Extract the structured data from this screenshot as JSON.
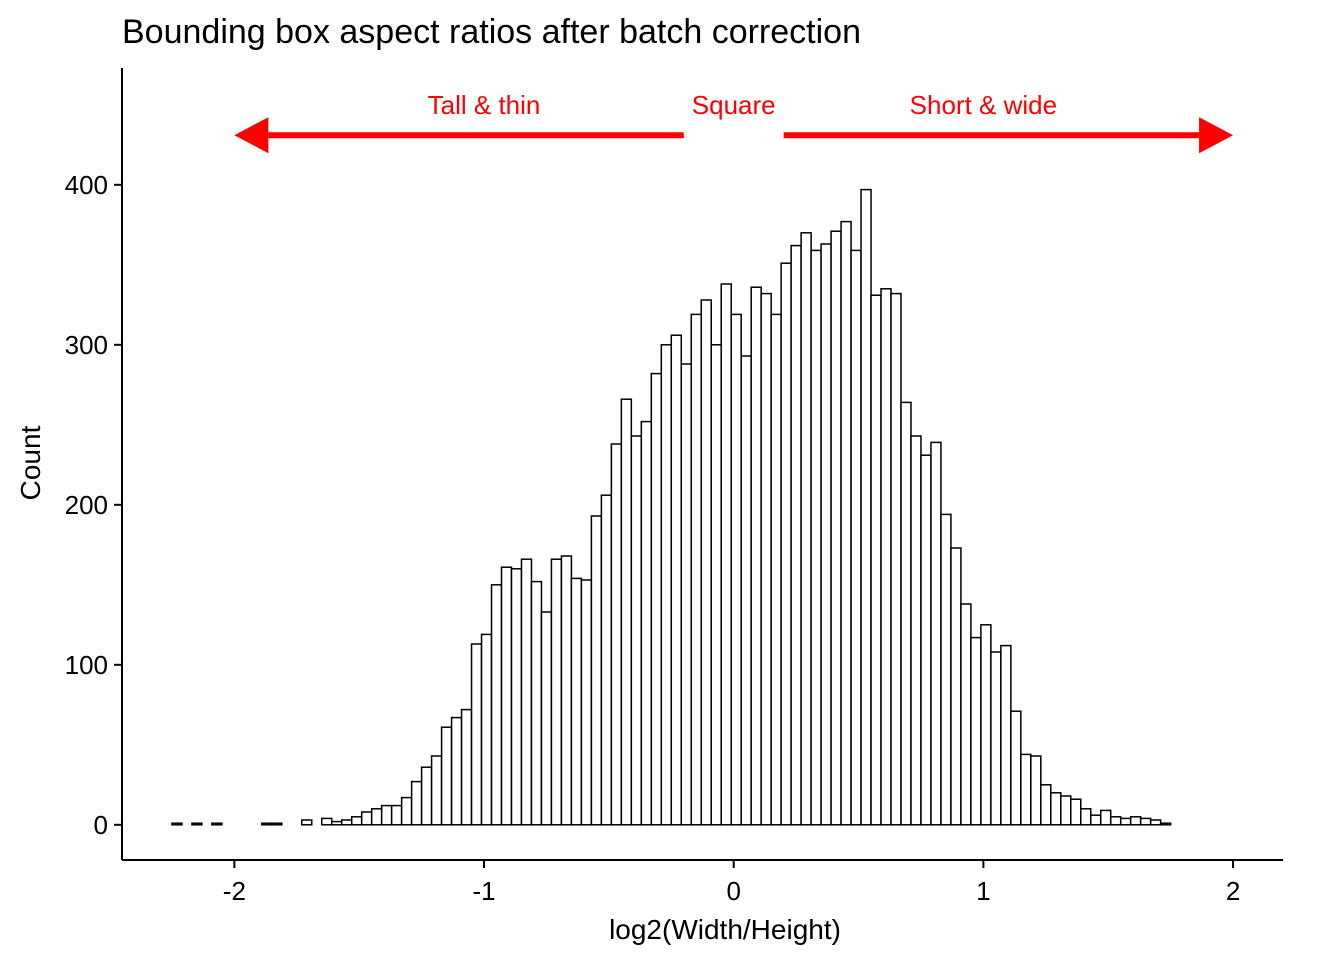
{
  "chart_data": {
    "type": "bar",
    "title": "Bounding box aspect ratios after batch correction",
    "xlabel": "log2(Width/Height)",
    "ylabel": "Count",
    "xlim": [
      -2.45,
      2.2
    ],
    "ylim": [
      -22,
      473
    ],
    "x_ticks": [
      -2,
      -1,
      0,
      1,
      2
    ],
    "x_tick_labels": [
      "-2",
      "-1",
      "0",
      "1",
      "2"
    ],
    "y_ticks": [
      0,
      100,
      200,
      300,
      400
    ],
    "y_tick_labels": [
      "0",
      "100",
      "200",
      "300",
      "400"
    ],
    "bin_start": -2.25,
    "bin_width": 0.04,
    "counts": [
      1,
      0,
      1,
      0,
      1,
      0,
      0,
      0,
      0,
      1,
      1,
      0,
      0,
      3,
      0,
      4,
      2,
      3,
      5,
      8,
      10,
      12,
      12,
      17,
      27,
      36,
      43,
      61,
      67,
      72,
      113,
      119,
      150,
      161,
      160,
      166,
      152,
      133,
      166,
      168,
      154,
      153,
      193,
      206,
      238,
      266,
      243,
      252,
      282,
      300,
      306,
      288,
      319,
      328,
      300,
      338,
      319,
      293,
      336,
      332,
      319,
      351,
      362,
      370,
      359,
      363,
      371,
      377,
      359,
      397,
      331,
      335,
      332,
      264,
      243,
      231,
      239,
      194,
      173,
      138,
      117,
      125,
      108,
      112,
      71,
      44,
      43,
      25,
      20,
      18,
      16,
      10,
      6,
      9,
      5,
      4,
      5,
      4,
      3,
      1
    ],
    "grid": false,
    "bar_fill": "#FFFFFF",
    "bar_stroke": "#000000",
    "annotation_color": "#FF0000",
    "annotations": [
      {
        "label": "Tall & thin",
        "x": -1.0,
        "y": 450
      },
      {
        "label": "Square",
        "x": 0.0,
        "y": 450
      },
      {
        "label": "Short & wide",
        "x": 1.0,
        "y": 450
      }
    ],
    "arrows": [
      {
        "name": "tall-thin",
        "from": -0.2,
        "to": -2.0,
        "y": 431
      },
      {
        "name": "short-wide",
        "from": 0.2,
        "to": 2.0,
        "y": 431
      }
    ]
  }
}
